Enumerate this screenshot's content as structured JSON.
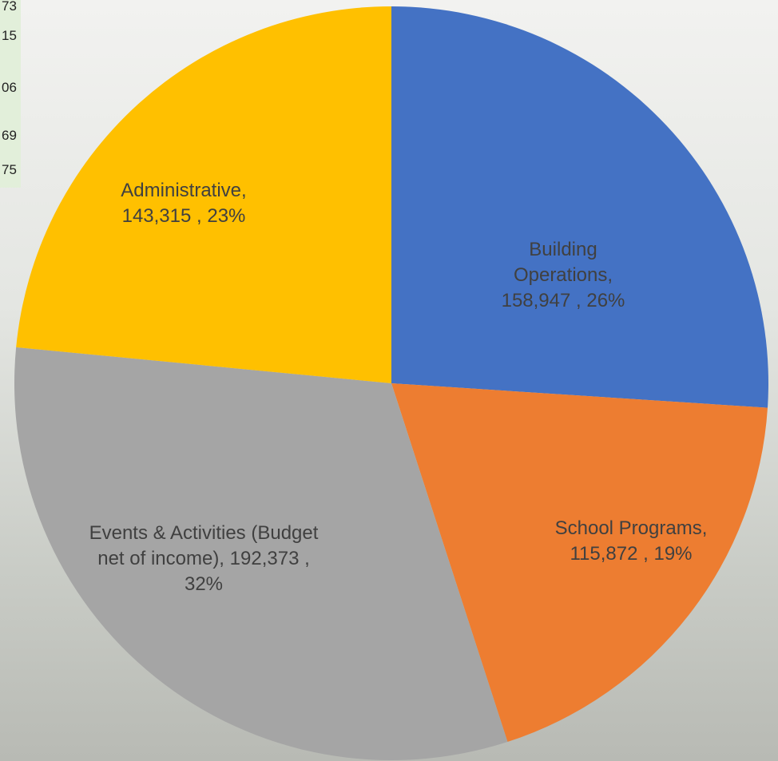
{
  "chart_data": {
    "type": "pie",
    "categories": [
      "Building Operations,",
      "School Programs,",
      "Events & Activities (Budget net of income),",
      "Administrative,"
    ],
    "values": [
      158947,
      115872,
      192373,
      143315
    ],
    "value_labels": [
      "158,947 ,",
      "115,872 ,",
      "192,373 ,",
      "143,315 ,"
    ],
    "percents": [
      26,
      19,
      32,
      23
    ],
    "percent_labels": [
      "26%",
      "19%",
      "32%",
      "23%"
    ],
    "colors": [
      "#4472c4",
      "#ed7d31",
      "#a5a5a5",
      "#ffc000"
    ]
  },
  "side_table": [
    "73",
    "15",
    "06",
    "69",
    "75"
  ]
}
